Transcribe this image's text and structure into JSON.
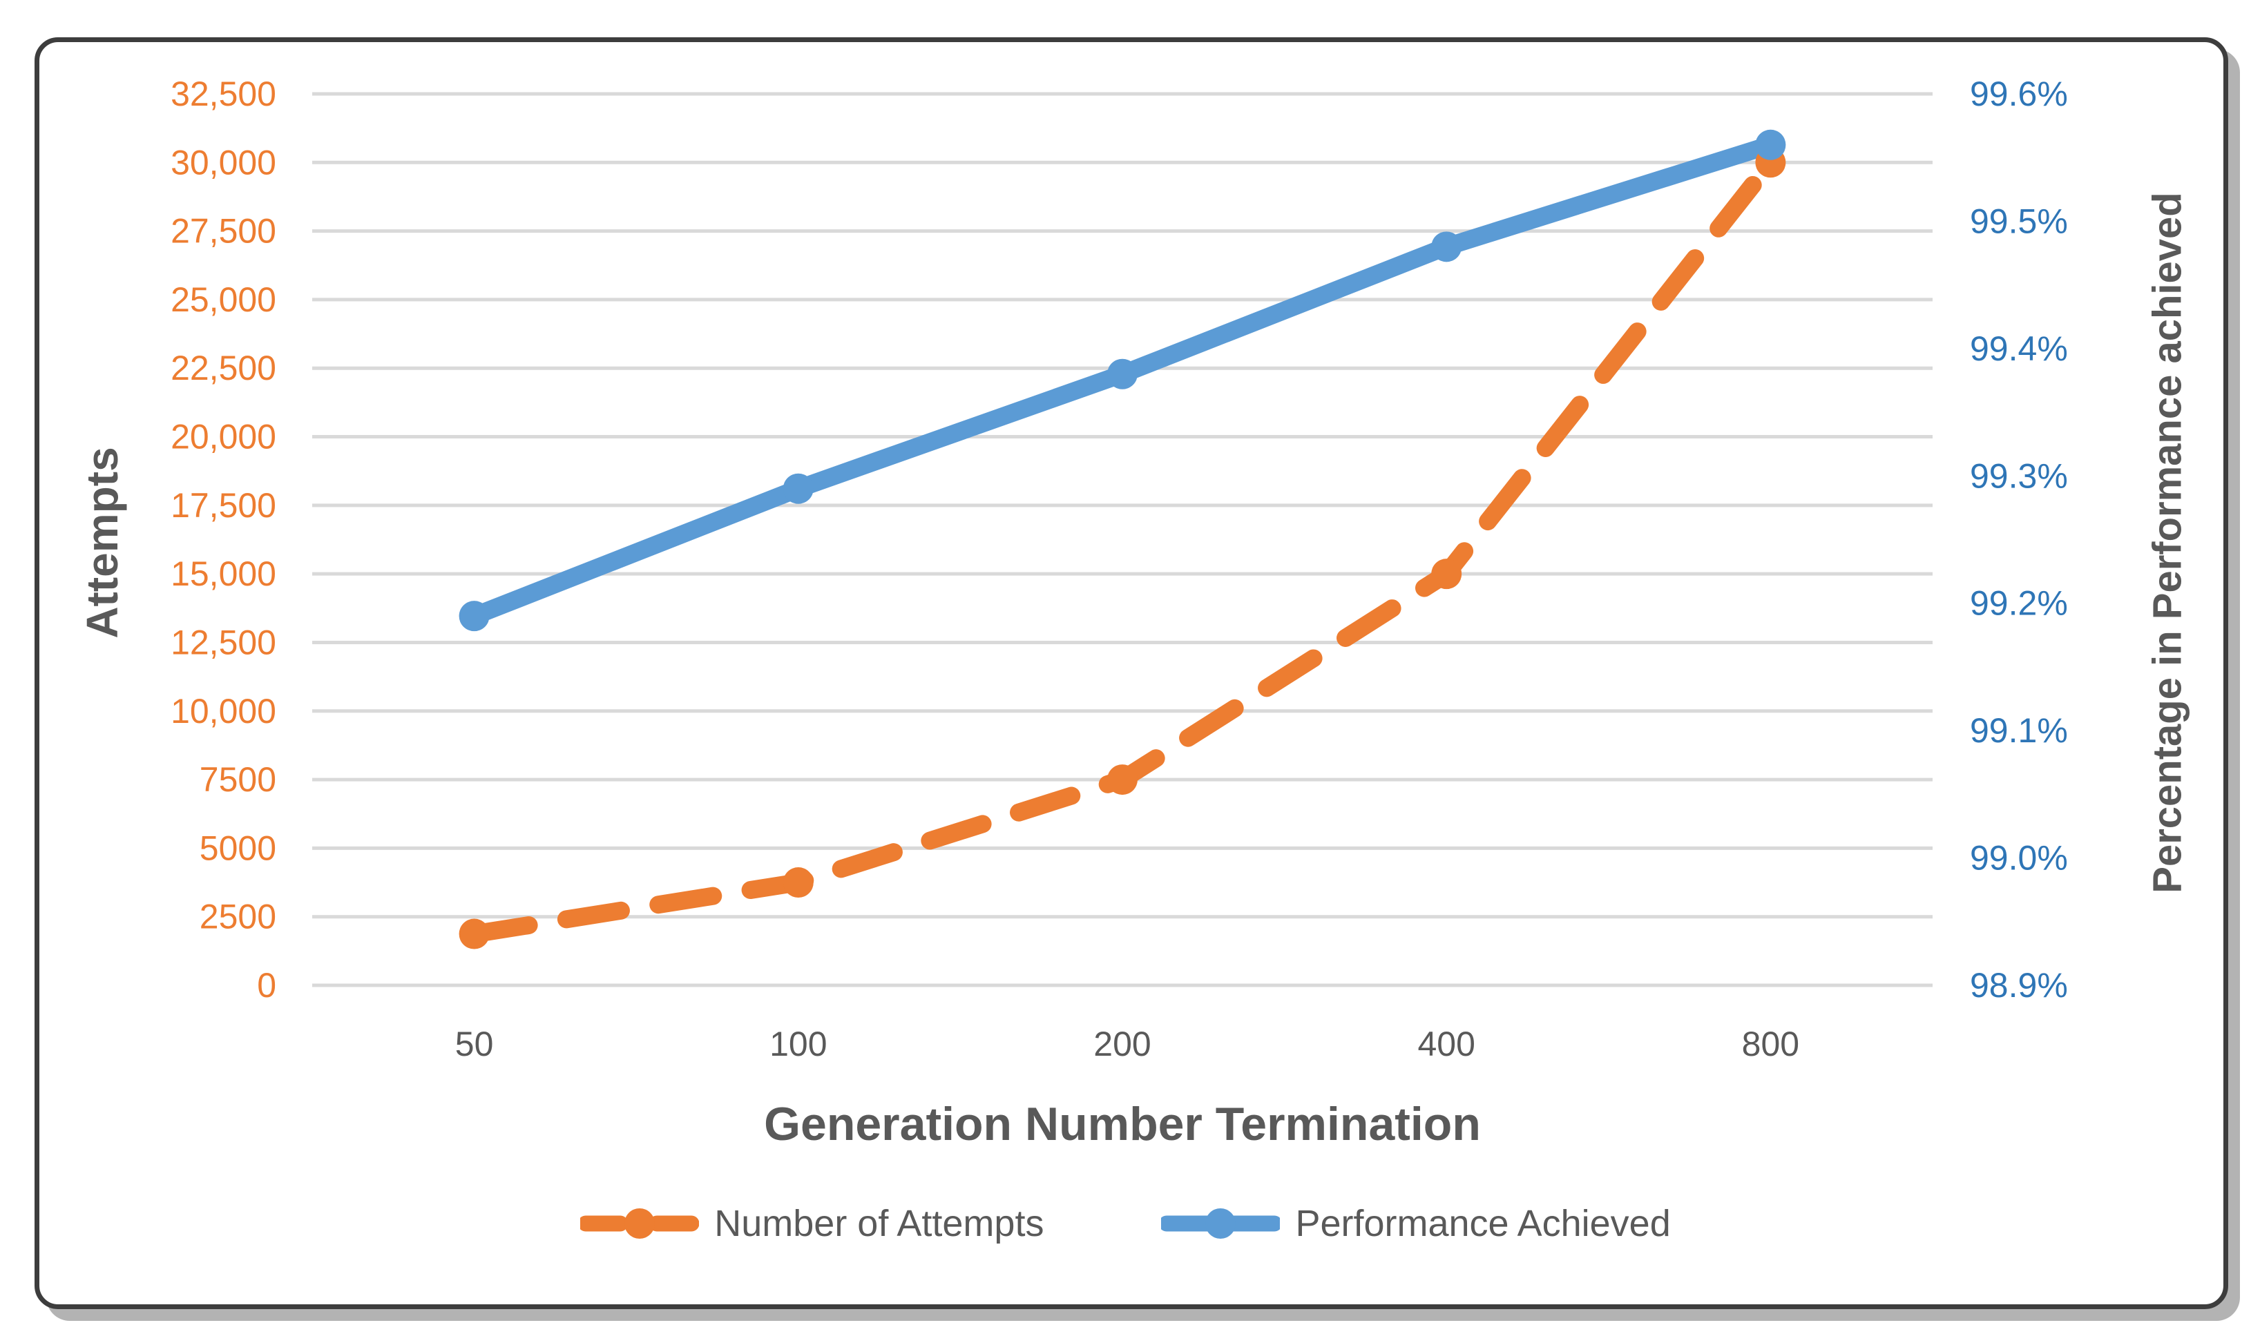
{
  "chart_data": {
    "type": "line",
    "xlabel": "Generation Number Termination",
    "ylabel_left": "Attempts",
    "ylabel_right": "Percentage in Performance achieved",
    "categories": [
      50,
      100,
      200,
      400,
      800
    ],
    "x_tick_labels": [
      "50",
      "100",
      "200",
      "400",
      "800"
    ],
    "series": [
      {
        "name": "Number of Attempts",
        "axis": "left",
        "color": "#ED7D31",
        "style": "dashed",
        "marker": "circle",
        "values": [
          1875,
          3750,
          7500,
          15000,
          30000
        ]
      },
      {
        "name": "Performance Achieved",
        "axis": "right",
        "color": "#5B9BD5",
        "style": "solid",
        "marker": "circle",
        "values": [
          99.19,
          99.29,
          99.38,
          99.48,
          99.56
        ]
      }
    ],
    "left_axis": {
      "min": 0,
      "max": 32500,
      "step": 2500,
      "tick_labels": [
        "0",
        "2500",
        "5000",
        "7500",
        "10,000",
        "12,500",
        "15,000",
        "17,500",
        "20,000",
        "22,500",
        "25,000",
        "27,500",
        "30,000",
        "32,500"
      ],
      "label_color": "#ED7D31"
    },
    "right_axis": {
      "min": 98.9,
      "max": 99.6,
      "step": 0.1,
      "tick_labels": [
        "98.9%",
        "99.0%",
        "99.1%",
        "99.2%",
        "99.3%",
        "99.4%",
        "99.5%",
        "99.6%"
      ],
      "label_color": "#2E75B6"
    },
    "grid": true,
    "gridline_color": "#D9D9D9",
    "legend_position": "bottom",
    "text_color": "#595959",
    "frame_border_color": "#3d3d3d",
    "frame_shadow_color": "#b3b3b3"
  }
}
